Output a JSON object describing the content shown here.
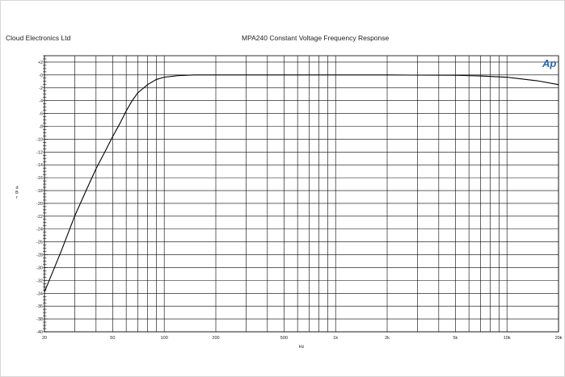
{
  "header": {
    "company": "Cloud Electronics Ltd",
    "title": "MPA240 Constant Voltage Frequency Response"
  },
  "logo": {
    "text": "Ap",
    "color": "#2a68b8"
  },
  "chart_data": {
    "type": "line",
    "title": "MPA240 Constant Voltage Frequency Response",
    "xlabel": "Hz",
    "ylabel": "d B r",
    "xscale": "log",
    "xlim": [
      20,
      20000
    ],
    "ylim": [
      -40,
      3
    ],
    "grid": true,
    "x_tick_labels": [
      {
        "value": 20,
        "label": "20"
      },
      {
        "value": 50,
        "label": "50"
      },
      {
        "value": 100,
        "label": "100"
      },
      {
        "value": 200,
        "label": "200"
      },
      {
        "value": 500,
        "label": "500"
      },
      {
        "value": 1000,
        "label": "1k"
      },
      {
        "value": 2000,
        "label": "2k"
      },
      {
        "value": 5000,
        "label": "5k"
      },
      {
        "value": 10000,
        "label": "10k"
      },
      {
        "value": 20000,
        "label": "20k"
      }
    ],
    "y_tick_labels": [
      {
        "value": 2,
        "label": "+2"
      },
      {
        "value": 0,
        "label": "-0"
      },
      {
        "value": -2,
        "label": "-2"
      },
      {
        "value": -4,
        "label": "-4"
      },
      {
        "value": -6,
        "label": "-6"
      },
      {
        "value": -8,
        "label": "-8"
      },
      {
        "value": -10,
        "label": "-10"
      },
      {
        "value": -12,
        "label": "-12"
      },
      {
        "value": -14,
        "label": "-14"
      },
      {
        "value": -16,
        "label": "-16"
      },
      {
        "value": -18,
        "label": "-18"
      },
      {
        "value": -20,
        "label": "-20"
      },
      {
        "value": -22,
        "label": "-22"
      },
      {
        "value": -24,
        "label": "-24"
      },
      {
        "value": -26,
        "label": "-26"
      },
      {
        "value": -28,
        "label": "-28"
      },
      {
        "value": -30,
        "label": "-30"
      },
      {
        "value": -32,
        "label": "-32"
      },
      {
        "value": -34,
        "label": "-34"
      },
      {
        "value": -36,
        "label": "-36"
      },
      {
        "value": -38,
        "label": "-38"
      },
      {
        "value": -40,
        "label": "-40"
      }
    ],
    "series": [
      {
        "color": "#000000",
        "points": [
          {
            "x": 20,
            "y": -33.8
          },
          {
            "x": 25,
            "y": -27.5
          },
          {
            "x": 30,
            "y": -22.0
          },
          {
            "x": 35,
            "y": -18.0
          },
          {
            "x": 40,
            "y": -14.6
          },
          {
            "x": 45,
            "y": -12.0
          },
          {
            "x": 50,
            "y": -9.6
          },
          {
            "x": 55,
            "y": -7.6
          },
          {
            "x": 60,
            "y": -5.6
          },
          {
            "x": 65,
            "y": -4.0
          },
          {
            "x": 70,
            "y": -2.8
          },
          {
            "x": 80,
            "y": -1.5
          },
          {
            "x": 90,
            "y": -0.7
          },
          {
            "x": 100,
            "y": -0.35
          },
          {
            "x": 120,
            "y": -0.1
          },
          {
            "x": 150,
            "y": 0.0
          },
          {
            "x": 200,
            "y": 0.0
          },
          {
            "x": 500,
            "y": 0.0
          },
          {
            "x": 1000,
            "y": 0.0
          },
          {
            "x": 2000,
            "y": 0.0
          },
          {
            "x": 5000,
            "y": -0.05
          },
          {
            "x": 7000,
            "y": -0.15
          },
          {
            "x": 10000,
            "y": -0.35
          },
          {
            "x": 15000,
            "y": -0.9
          },
          {
            "x": 20000,
            "y": -1.5
          }
        ]
      }
    ]
  }
}
